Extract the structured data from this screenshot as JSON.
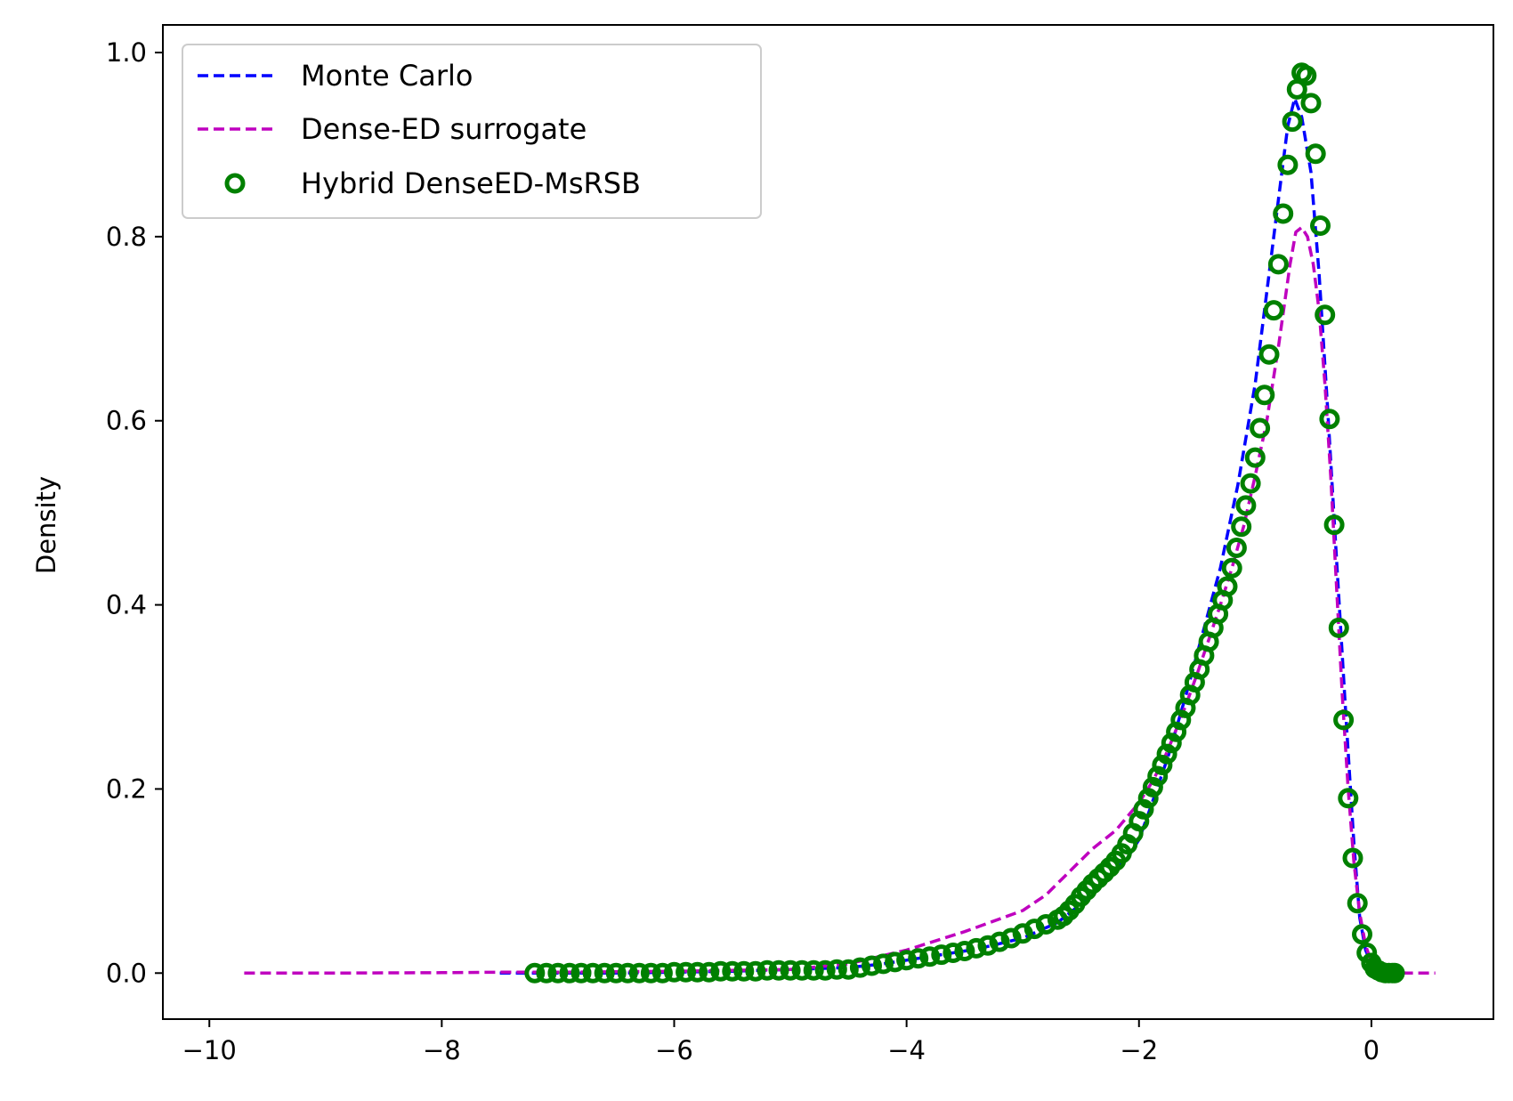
{
  "chart_data": {
    "type": "line",
    "title": "",
    "xlabel": "",
    "ylabel": "Density",
    "xlim": [
      -10.4,
      1.05
    ],
    "ylim": [
      -0.05,
      1.03
    ],
    "xticks": [
      -10,
      -8,
      -6,
      -4,
      -2,
      0
    ],
    "xtick_labels": [
      "−10",
      "−8",
      "−6",
      "−4",
      "−2",
      "0"
    ],
    "yticks": [
      0.0,
      0.2,
      0.4,
      0.6,
      0.8,
      1.0
    ],
    "ytick_labels": [
      "0.0",
      "0.2",
      "0.4",
      "0.6",
      "0.8",
      "1.0"
    ],
    "grid": false,
    "legend_position": "top-left",
    "series": [
      {
        "name": "Monte Carlo",
        "style": "dashed",
        "color": "#0000ff",
        "x": [
          -7.5,
          -7.2,
          -6.5,
          -6.0,
          -5.5,
          -5.0,
          -4.5,
          -4.2,
          -4.0,
          -3.7,
          -3.4,
          -3.0,
          -2.7,
          -2.5,
          -2.3,
          -2.1,
          -2.0,
          -1.9,
          -1.75,
          -1.6,
          -1.45,
          -1.3,
          -1.15,
          -1.0,
          -0.9,
          -0.8,
          -0.72,
          -0.66,
          -0.6,
          -0.52,
          -0.45,
          -0.38,
          -0.3,
          -0.22,
          -0.15,
          -0.1,
          -0.05,
          0.0,
          0.05,
          0.1,
          0.15,
          0.2
        ],
        "y": [
          0.0,
          0.0,
          0.0,
          0.001,
          0.002,
          0.004,
          0.006,
          0.01,
          0.014,
          0.02,
          0.026,
          0.038,
          0.055,
          0.075,
          0.1,
          0.125,
          0.145,
          0.18,
          0.235,
          0.3,
          0.37,
          0.44,
          0.53,
          0.64,
          0.74,
          0.84,
          0.92,
          0.95,
          0.93,
          0.87,
          0.76,
          0.62,
          0.45,
          0.28,
          0.14,
          0.06,
          0.025,
          0.01,
          0.004,
          0.002,
          0.001,
          0.0
        ]
      },
      {
        "name": "Dense-ED surrogate",
        "style": "dashed",
        "color": "#bf00bf",
        "x": [
          -9.7,
          -9.0,
          -8.0,
          -7.5,
          -7.0,
          -6.0,
          -5.0,
          -4.5,
          -4.0,
          -3.5,
          -3.0,
          -2.8,
          -2.6,
          -2.4,
          -2.2,
          -2.0,
          -1.9,
          -1.8,
          -1.7,
          -1.6,
          -1.5,
          -1.4,
          -1.3,
          -1.2,
          -1.1,
          -1.0,
          -0.9,
          -0.8,
          -0.7,
          -0.65,
          -0.6,
          -0.55,
          -0.5,
          -0.45,
          -0.4,
          -0.35,
          -0.3,
          -0.25,
          -0.2,
          -0.15,
          -0.1,
          -0.05,
          0.0,
          0.1,
          0.2,
          0.3,
          0.4,
          0.55
        ],
        "y": [
          0.0,
          0.0,
          0.0005,
          0.001,
          0.001,
          0.002,
          0.004,
          0.01,
          0.025,
          0.045,
          0.068,
          0.085,
          0.11,
          0.135,
          0.155,
          0.185,
          0.205,
          0.228,
          0.258,
          0.29,
          0.325,
          0.362,
          0.4,
          0.44,
          0.485,
          0.54,
          0.6,
          0.68,
          0.77,
          0.805,
          0.81,
          0.8,
          0.77,
          0.72,
          0.64,
          0.54,
          0.42,
          0.3,
          0.2,
          0.12,
          0.065,
          0.03,
          0.012,
          0.004,
          0.001,
          0.0,
          0.0,
          0.0
        ]
      },
      {
        "name": "Hybrid DenseED-MsRSB",
        "style": "markers",
        "color": "#008000",
        "x": [
          -7.2,
          -7.1,
          -7.0,
          -6.9,
          -6.8,
          -6.7,
          -6.6,
          -6.5,
          -6.4,
          -6.3,
          -6.2,
          -6.1,
          -6.0,
          -5.9,
          -5.8,
          -5.7,
          -5.6,
          -5.5,
          -5.4,
          -5.3,
          -5.2,
          -5.1,
          -5.0,
          -4.9,
          -4.8,
          -4.7,
          -4.6,
          -4.5,
          -4.4,
          -4.3,
          -4.2,
          -4.1,
          -4.0,
          -3.9,
          -3.8,
          -3.7,
          -3.6,
          -3.5,
          -3.4,
          -3.3,
          -3.2,
          -3.1,
          -3.0,
          -2.9,
          -2.8,
          -2.7,
          -2.65,
          -2.6,
          -2.55,
          -2.5,
          -2.45,
          -2.4,
          -2.35,
          -2.3,
          -2.25,
          -2.2,
          -2.15,
          -2.1,
          -2.05,
          -2.0,
          -1.96,
          -1.92,
          -1.88,
          -1.84,
          -1.8,
          -1.76,
          -1.72,
          -1.68,
          -1.64,
          -1.6,
          -1.56,
          -1.52,
          -1.48,
          -1.44,
          -1.4,
          -1.36,
          -1.32,
          -1.28,
          -1.24,
          -1.2,
          -1.16,
          -1.12,
          -1.08,
          -1.04,
          -1.0,
          -0.96,
          -0.92,
          -0.88,
          -0.84,
          -0.8,
          -0.76,
          -0.72,
          -0.68,
          -0.64,
          -0.6,
          -0.56,
          -0.52,
          -0.48,
          -0.44,
          -0.4,
          -0.36,
          -0.32,
          -0.28,
          -0.24,
          -0.2,
          -0.16,
          -0.12,
          -0.08,
          -0.04,
          0.0,
          0.03,
          0.06,
          0.09,
          0.12,
          0.15,
          0.18,
          0.2
        ],
        "y": [
          0.0,
          0.0,
          0.0,
          0.0,
          0.0,
          0.0,
          0.0,
          0.0,
          0.0,
          0.0,
          0.0,
          0.0,
          0.001,
          0.001,
          0.001,
          0.001,
          0.002,
          0.002,
          0.002,
          0.002,
          0.003,
          0.003,
          0.003,
          0.003,
          0.003,
          0.003,
          0.004,
          0.004,
          0.006,
          0.008,
          0.01,
          0.012,
          0.014,
          0.016,
          0.018,
          0.02,
          0.022,
          0.024,
          0.027,
          0.03,
          0.034,
          0.038,
          0.043,
          0.048,
          0.053,
          0.058,
          0.062,
          0.068,
          0.075,
          0.083,
          0.09,
          0.097,
          0.103,
          0.109,
          0.115,
          0.122,
          0.13,
          0.14,
          0.152,
          0.165,
          0.178,
          0.19,
          0.202,
          0.214,
          0.226,
          0.238,
          0.25,
          0.262,
          0.275,
          0.288,
          0.302,
          0.316,
          0.33,
          0.345,
          0.36,
          0.375,
          0.39,
          0.405,
          0.42,
          0.44,
          0.462,
          0.485,
          0.508,
          0.532,
          0.56,
          0.592,
          0.628,
          0.672,
          0.72,
          0.77,
          0.825,
          0.878,
          0.925,
          0.96,
          0.978,
          0.975,
          0.945,
          0.89,
          0.812,
          0.715,
          0.602,
          0.487,
          0.375,
          0.275,
          0.19,
          0.125,
          0.076,
          0.042,
          0.022,
          0.011,
          0.005,
          0.003,
          0.001,
          0.0,
          0.0,
          0.0,
          0.0
        ]
      }
    ]
  }
}
